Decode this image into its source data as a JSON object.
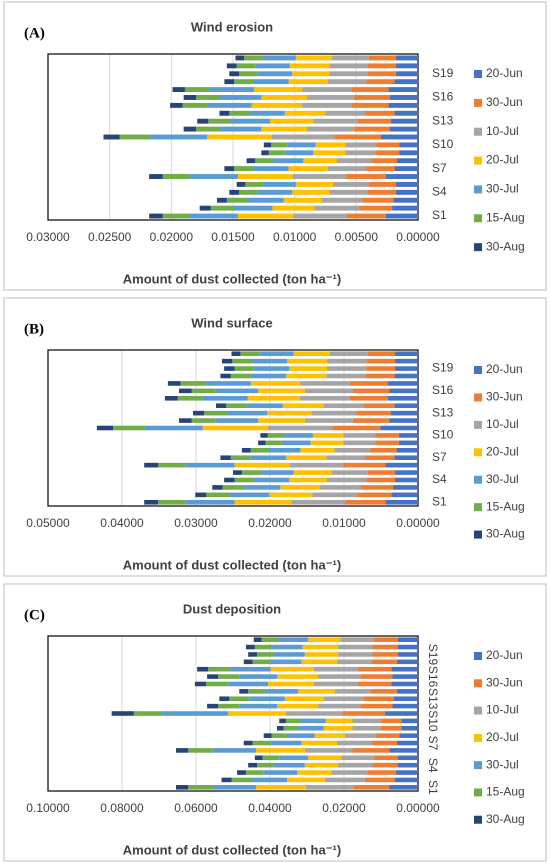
{
  "chart_data": [
    {
      "type": "bar",
      "panel_label": "(A)",
      "title": "Wind erosion",
      "x_label": "Amount of dust collected (ton ha⁻¹)",
      "orientation": "horizontal",
      "stacked": true,
      "x_reversed": true,
      "grid": true,
      "legend": "right",
      "categories": [
        "S1",
        null,
        null,
        "S4",
        null,
        null,
        "S7",
        null,
        null,
        "S10",
        null,
        null,
        "S13",
        null,
        null,
        "S16",
        null,
        null,
        "S19",
        null,
        null
      ],
      "xlim": [
        0,
        0.03
      ],
      "xticks": [
        {
          "value": 0.03,
          "label": "0.03000"
        },
        {
          "value": 0.025,
          "label": "0.02500"
        },
        {
          "value": 0.02,
          "label": "0.02000"
        },
        {
          "value": 0.015,
          "label": "0.01500"
        },
        {
          "value": 0.01,
          "label": "0.01000"
        },
        {
          "value": 0.005,
          "label": "0.00500"
        },
        {
          "value": 0,
          "label": "0.00000"
        }
      ],
      "series": [
        {
          "name": "20-Jun",
          "color": "#4472c4",
          "values": [
            0.0026,
            0.0021,
            0.002,
            0.0018,
            0.0018,
            0.0026,
            0.0019,
            0.0017,
            0.0015,
            0.0015,
            0.003,
            0.0023,
            0.0022,
            0.0019,
            0.0024,
            0.0023,
            0.0024,
            0.0019,
            0.0018,
            0.0018,
            0.0018
          ]
        },
        {
          "name": "30-Jun",
          "color": "#ed7d31",
          "values": [
            0.0032,
            0.0027,
            0.0025,
            0.0023,
            0.0022,
            0.0033,
            0.0023,
            0.0021,
            0.0019,
            0.0019,
            0.0038,
            0.0029,
            0.0027,
            0.0024,
            0.003,
            0.0029,
            0.003,
            0.0023,
            0.0023,
            0.0023,
            0.0022
          ]
        },
        {
          "name": "10-Jul",
          "color": "#a5a5a5",
          "values": [
            0.0043,
            0.0036,
            0.0033,
            0.0031,
            0.0029,
            0.0043,
            0.0031,
            0.0028,
            0.0025,
            0.0025,
            0.0051,
            0.0038,
            0.0036,
            0.0032,
            0.004,
            0.0038,
            0.004,
            0.0031,
            0.0031,
            0.0031,
            0.003
          ]
        },
        {
          "name": "20-Jul",
          "color": "#ffc000",
          "values": [
            0.0045,
            0.0034,
            0.0031,
            0.003,
            0.003,
            0.0044,
            0.0032,
            0.0027,
            0.0026,
            0.0024,
            0.0052,
            0.0037,
            0.0035,
            0.0033,
            0.0041,
            0.0037,
            0.0039,
            0.0032,
            0.003,
            0.0032,
            0.0029
          ]
        },
        {
          "name": "30-Jul",
          "color": "#5b9bd5",
          "values": [
            0.0039,
            0.0032,
            0.003,
            0.0028,
            0.0026,
            0.0039,
            0.0028,
            0.0025,
            0.0023,
            0.0023,
            0.0046,
            0.0034,
            0.0032,
            0.0029,
            0.0036,
            0.0034,
            0.0036,
            0.0028,
            0.0028,
            0.0028,
            0.0027
          ]
        },
        {
          "name": "15-Aug",
          "color": "#70ad47",
          "values": [
            0.0022,
            0.0018,
            0.0016,
            0.0015,
            0.0015,
            0.0022,
            0.0016,
            0.0014,
            0.0013,
            0.0013,
            0.0025,
            0.0019,
            0.0018,
            0.0016,
            0.002,
            0.0019,
            0.002,
            0.0016,
            0.0015,
            0.0015,
            0.0015
          ]
        },
        {
          "name": "30-Aug",
          "color": "#264478",
          "values": [
            0.0011,
            0.0009,
            0.0008,
            0.0008,
            0.0007,
            0.0011,
            0.0008,
            0.0007,
            0.0006,
            0.0006,
            0.0013,
            0.001,
            0.0009,
            0.0008,
            0.001,
            0.001,
            0.001,
            0.0008,
            0.0008,
            0.0008,
            0.0007
          ]
        }
      ]
    },
    {
      "type": "bar",
      "panel_label": "(B)",
      "title": "Wind surface",
      "x_label": "Amount of dust collected (ton ha⁻¹)",
      "orientation": "horizontal",
      "stacked": true,
      "x_reversed": true,
      "grid": true,
      "legend": "right",
      "categories": [
        "S1",
        null,
        null,
        "S4",
        null,
        null,
        "S7",
        null,
        null,
        "S10",
        null,
        null,
        "S13",
        null,
        null,
        "S16",
        null,
        null,
        "S19",
        null,
        null
      ],
      "xlim": [
        0,
        0.05
      ],
      "xticks": [
        {
          "value": 0.05,
          "label": "0.05000"
        },
        {
          "value": 0.04,
          "label": "0.04000"
        },
        {
          "value": 0.03,
          "label": "0.03000"
        },
        {
          "value": 0.02,
          "label": "0.02000"
        },
        {
          "value": 0.01,
          "label": "0.01000"
        },
        {
          "value": 0,
          "label": "0.00000"
        }
      ],
      "series": [
        {
          "name": "20-Jun",
          "color": "#4472c4",
          "values": [
            0.0044,
            0.0036,
            0.0034,
            0.0031,
            0.0031,
            0.0044,
            0.0032,
            0.0029,
            0.0026,
            0.0026,
            0.0051,
            0.0039,
            0.0037,
            0.0032,
            0.0041,
            0.0039,
            0.0041,
            0.0032,
            0.0031,
            0.0031,
            0.0031
          ]
        },
        {
          "name": "30-Jun",
          "color": "#ed7d31",
          "values": [
            0.0054,
            0.0046,
            0.0043,
            0.0039,
            0.0037,
            0.0056,
            0.0039,
            0.0036,
            0.0032,
            0.0032,
            0.0065,
            0.0049,
            0.0046,
            0.0041,
            0.0051,
            0.0049,
            0.0051,
            0.0039,
            0.0039,
            0.0039,
            0.0037
          ]
        },
        {
          "name": "10-Jul",
          "color": "#a5a5a5",
          "values": [
            0.0073,
            0.0061,
            0.0056,
            0.0053,
            0.0049,
            0.0073,
            0.0053,
            0.0048,
            0.0043,
            0.0043,
            0.0087,
            0.0065,
            0.0061,
            0.0054,
            0.0068,
            0.0065,
            0.0068,
            0.0053,
            0.0053,
            0.0053,
            0.0051
          ]
        },
        {
          "name": "20-Jul",
          "color": "#ffc000",
          "values": [
            0.0077,
            0.0058,
            0.0053,
            0.0051,
            0.0051,
            0.0075,
            0.0054,
            0.0046,
            0.0044,
            0.0041,
            0.0088,
            0.0063,
            0.006,
            0.0056,
            0.007,
            0.0063,
            0.0066,
            0.0054,
            0.0051,
            0.0054,
            0.0049
          ]
        },
        {
          "name": "30-Jul",
          "color": "#5b9bd5",
          "values": [
            0.0066,
            0.0054,
            0.0051,
            0.0048,
            0.0044,
            0.0066,
            0.0048,
            0.0043,
            0.0039,
            0.0039,
            0.0078,
            0.0058,
            0.0054,
            0.0049,
            0.0061,
            0.0058,
            0.0061,
            0.0048,
            0.0048,
            0.0048,
            0.0046
          ]
        },
        {
          "name": "15-Aug",
          "color": "#70ad47",
          "values": [
            0.0037,
            0.0031,
            0.0027,
            0.0026,
            0.0026,
            0.0037,
            0.0027,
            0.0024,
            0.0022,
            0.0022,
            0.0043,
            0.0032,
            0.0031,
            0.0027,
            0.0034,
            0.0032,
            0.0034,
            0.0027,
            0.0026,
            0.0026,
            0.0026
          ]
        },
        {
          "name": "30-Aug",
          "color": "#264478",
          "values": [
            0.0019,
            0.0015,
            0.0014,
            0.0014,
            0.0012,
            0.0019,
            0.0014,
            0.0012,
            0.001,
            0.001,
            0.0022,
            0.0017,
            0.0015,
            0.0014,
            0.0017,
            0.0017,
            0.0017,
            0.0014,
            0.0014,
            0.0014,
            0.0012
          ]
        }
      ]
    },
    {
      "type": "bar",
      "panel_label": "(C)",
      "title": "Dust deposition",
      "x_label": "Amount of dust collected (ton ha⁻¹)",
      "orientation": "horizontal",
      "stacked": true,
      "x_reversed": true,
      "grid": true,
      "legend": "right",
      "category_label_rotation": 90,
      "categories": [
        "S1",
        null,
        null,
        "S4",
        null,
        null,
        "S7",
        null,
        null,
        "S10",
        null,
        null,
        "S13",
        null,
        null,
        "S16",
        null,
        null,
        "S19",
        null,
        null
      ],
      "xlim": [
        0,
        0.1
      ],
      "xticks": [
        {
          "value": 0.1,
          "label": "0.10000"
        },
        {
          "value": 0.08,
          "label": "0.08000"
        },
        {
          "value": 0.06,
          "label": "0.06000"
        },
        {
          "value": 0.04,
          "label": "0.04000"
        },
        {
          "value": 0.02,
          "label": "0.02000"
        },
        {
          "value": 0,
          "label": "0.00000"
        }
      ],
      "series": [
        {
          "name": "20-Jun",
          "color": "#4472c4",
          "values": [
            0.0078,
            0.0063,
            0.006,
            0.0054,
            0.0054,
            0.0078,
            0.0057,
            0.0051,
            0.0045,
            0.0045,
            0.009,
            0.0069,
            0.0066,
            0.0057,
            0.0072,
            0.0069,
            0.0072,
            0.0057,
            0.0054,
            0.0054,
            0.0054
          ]
        },
        {
          "name": "30-Jun",
          "color": "#ed7d31",
          "values": [
            0.0096,
            0.0081,
            0.0075,
            0.0069,
            0.0066,
            0.0099,
            0.0069,
            0.0063,
            0.0057,
            0.0057,
            0.0114,
            0.0087,
            0.0081,
            0.0072,
            0.009,
            0.0087,
            0.009,
            0.0069,
            0.0069,
            0.0069,
            0.0066
          ]
        },
        {
          "name": "10-Jul",
          "color": "#a5a5a5",
          "values": [
            0.0129,
            0.0108,
            0.0099,
            0.0093,
            0.0087,
            0.0129,
            0.0093,
            0.0084,
            0.0075,
            0.0075,
            0.0153,
            0.0114,
            0.0108,
            0.0096,
            0.012,
            0.0114,
            0.012,
            0.0093,
            0.0093,
            0.0093,
            0.009
          ]
        },
        {
          "name": "20-Jul",
          "color": "#ffc000",
          "values": [
            0.0135,
            0.0102,
            0.0093,
            0.009,
            0.009,
            0.0132,
            0.0096,
            0.0081,
            0.0078,
            0.0072,
            0.0156,
            0.0111,
            0.0105,
            0.0099,
            0.0123,
            0.0111,
            0.0117,
            0.0096,
            0.009,
            0.0096,
            0.0087
          ]
        },
        {
          "name": "30-Jul",
          "color": "#5b9bd5",
          "values": [
            0.0117,
            0.0096,
            0.009,
            0.0084,
            0.0078,
            0.0117,
            0.0084,
            0.0075,
            0.0069,
            0.0069,
            0.018,
            0.0102,
            0.0096,
            0.0087,
            0.0108,
            0.0102,
            0.0108,
            0.0084,
            0.0084,
            0.0084,
            0.0081
          ]
        },
        {
          "name": "15-Aug",
          "color": "#70ad47",
          "values": [
            0.0066,
            0.0054,
            0.0048,
            0.0045,
            0.0045,
            0.0066,
            0.0048,
            0.0042,
            0.0039,
            0.0039,
            0.0075,
            0.0057,
            0.0054,
            0.0048,
            0.006,
            0.0057,
            0.006,
            0.0048,
            0.0045,
            0.0045,
            0.0045
          ]
        },
        {
          "name": "30-Aug",
          "color": "#264478",
          "values": [
            0.0033,
            0.0027,
            0.0024,
            0.0024,
            0.0021,
            0.0033,
            0.0024,
            0.0021,
            0.0018,
            0.0018,
            0.006,
            0.003,
            0.0027,
            0.0024,
            0.003,
            0.003,
            0.003,
            0.0024,
            0.0024,
            0.0024,
            0.0021
          ]
        }
      ]
    }
  ]
}
